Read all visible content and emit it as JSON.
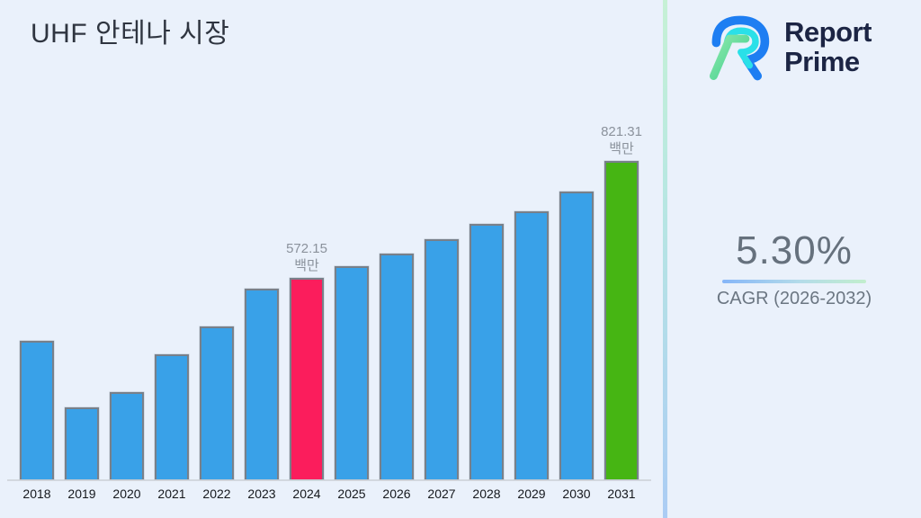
{
  "page": {
    "background": "#eaf1fb"
  },
  "header": {
    "title": "UHF 안테나 시장"
  },
  "brand": {
    "name_line1": "Report",
    "name_line2": "Prime",
    "logo_icon": "report-prime-logo",
    "text_color": "#1c2544",
    "logo_blue": "#1e7ef2",
    "logo_cyan": "#2ae0e8",
    "logo_green_light": "#8ce8ab",
    "logo_green": "#3ecf8e"
  },
  "cagr": {
    "value": "5.30%",
    "caption": "CAGR (2026-2032)",
    "underline_from": "#86b6f8",
    "underline_to": "#c2eecd"
  },
  "chart_data": {
    "type": "bar",
    "title": "UHF 안테나 시장",
    "xlabel": "",
    "ylabel": "",
    "unit": "백만",
    "ylim": [
      144,
      880
    ],
    "grid": false,
    "legend": false,
    "values_note": "only 2024 and 2031 carry data labels; other values estimated from bar heights",
    "categories": [
      "2018",
      "2019",
      "2020",
      "2021",
      "2022",
      "2023",
      "2024",
      "2025",
      "2026",
      "2027",
      "2028",
      "2029",
      "2030",
      "2031"
    ],
    "values": [
      439,
      296,
      330,
      410,
      469,
      549,
      572.15,
      597,
      623,
      654,
      686,
      713,
      755,
      821.31
    ],
    "bars": [
      {
        "year": "2018",
        "value": 439,
        "color_key": "blue",
        "label_value": null,
        "label_unit": null
      },
      {
        "year": "2019",
        "value": 296,
        "color_key": "blue",
        "label_value": null,
        "label_unit": null
      },
      {
        "year": "2020",
        "value": 330,
        "color_key": "blue",
        "label_value": null,
        "label_unit": null
      },
      {
        "year": "2021",
        "value": 410,
        "color_key": "blue",
        "label_value": null,
        "label_unit": null
      },
      {
        "year": "2022",
        "value": 469,
        "color_key": "blue",
        "label_value": null,
        "label_unit": null
      },
      {
        "year": "2023",
        "value": 549,
        "color_key": "blue",
        "label_value": null,
        "label_unit": null
      },
      {
        "year": "2024",
        "value": 572.15,
        "color_key": "pink",
        "label_value": "572.15",
        "label_unit": "백만"
      },
      {
        "year": "2025",
        "value": 597,
        "color_key": "blue",
        "label_value": null,
        "label_unit": null
      },
      {
        "year": "2026",
        "value": 623,
        "color_key": "blue",
        "label_value": null,
        "label_unit": null
      },
      {
        "year": "2027",
        "value": 654,
        "color_key": "blue",
        "label_value": null,
        "label_unit": null
      },
      {
        "year": "2028",
        "value": 686,
        "color_key": "blue",
        "label_value": null,
        "label_unit": null
      },
      {
        "year": "2029",
        "value": 713,
        "color_key": "blue",
        "label_value": null,
        "label_unit": null
      },
      {
        "year": "2030",
        "value": 755,
        "color_key": "blue",
        "label_value": null,
        "label_unit": null
      },
      {
        "year": "2031",
        "value": 821.31,
        "color_key": "green",
        "label_value": "821.31",
        "label_unit": "백만"
      }
    ],
    "colors": {
      "blue": "#39a1e8",
      "pink": "#fb1d5c",
      "green": "#46b513",
      "bar_border": "#78808a",
      "axis_line": "#d3d8df",
      "tick_text": "#15181d",
      "label_text": "#8b929c"
    }
  }
}
